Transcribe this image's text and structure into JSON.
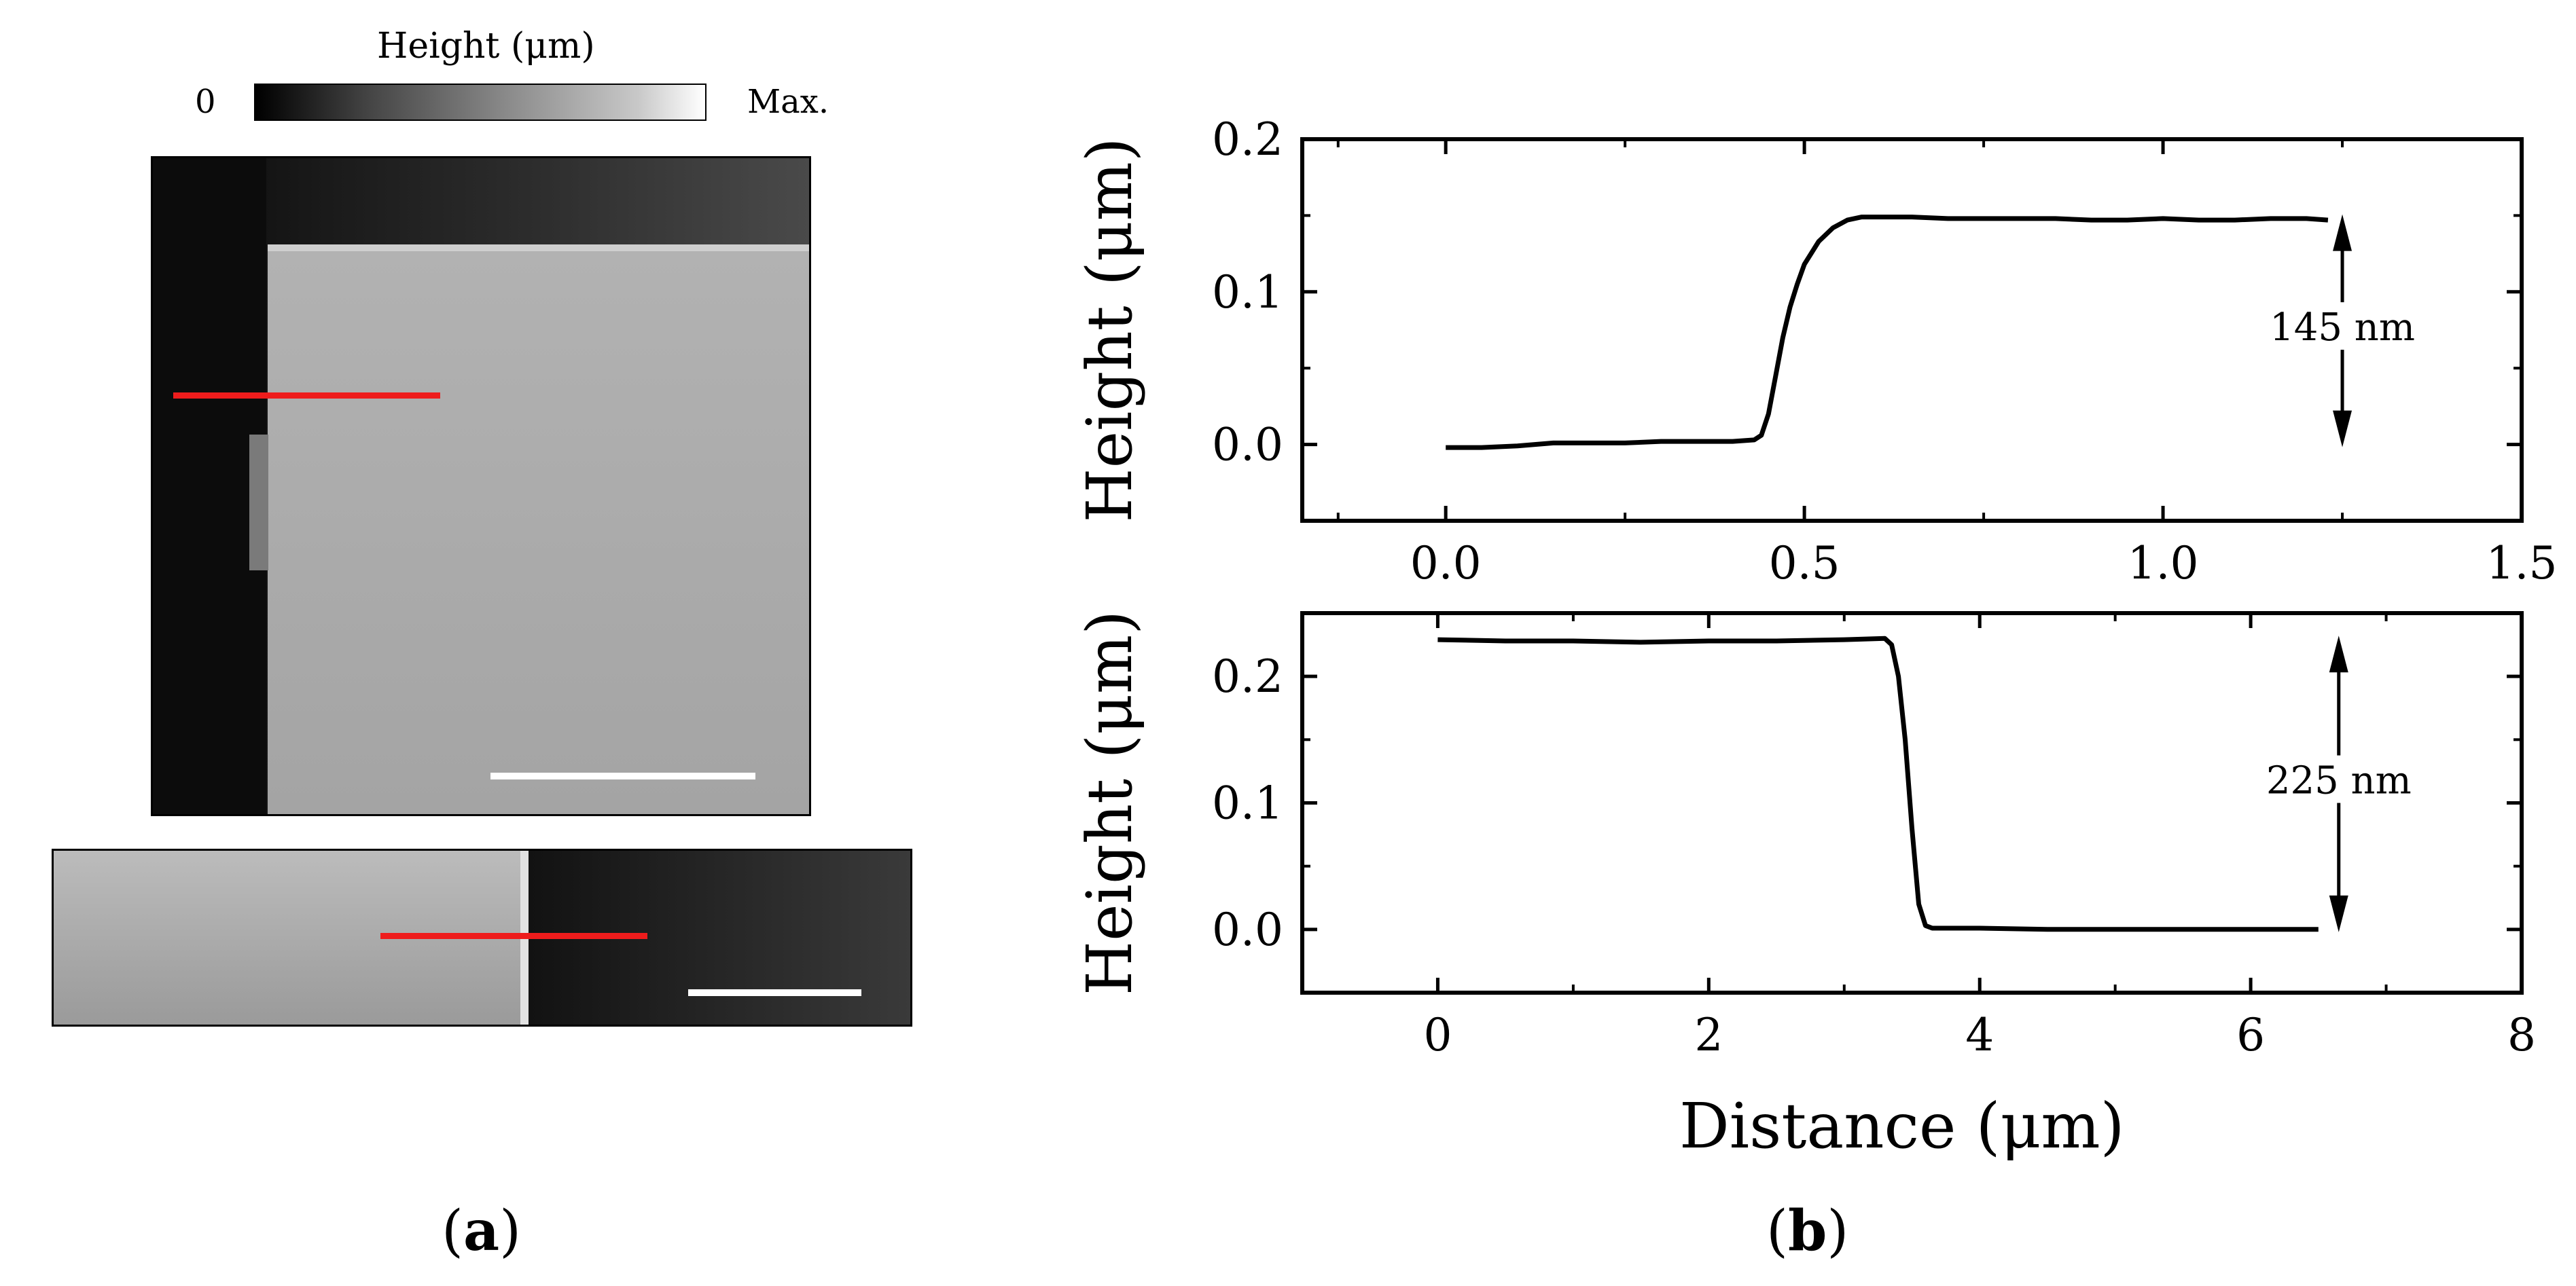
{
  "panel_a": {
    "colorbar": {
      "title": "Height (μm)",
      "min_label": "0",
      "max_label": "Max."
    },
    "label": "a"
  },
  "panel_b": {
    "label": "b",
    "xlabel": "Distance (μm)"
  },
  "chart_data": [
    {
      "type": "line",
      "xlabel": "",
      "ylabel": "Height (μm)",
      "xlim": [
        -0.2,
        1.5
      ],
      "ylim": [
        -0.05,
        0.2
      ],
      "xticks": [
        "0.0",
        "0.5",
        "1.0",
        "1.5"
      ],
      "yticks": [
        "0.0",
        "0.1",
        "0.2"
      ],
      "annotation": "145 nm",
      "x": [
        0.0,
        0.05,
        0.1,
        0.15,
        0.2,
        0.25,
        0.3,
        0.35,
        0.4,
        0.43,
        0.44,
        0.45,
        0.46,
        0.47,
        0.48,
        0.49,
        0.5,
        0.52,
        0.54,
        0.56,
        0.58,
        0.6,
        0.65,
        0.7,
        0.75,
        0.8,
        0.85,
        0.9,
        0.95,
        1.0,
        1.05,
        1.1,
        1.15,
        1.2,
        1.23
      ],
      "y": [
        -0.002,
        -0.002,
        -0.001,
        0.001,
        0.001,
        0.001,
        0.002,
        0.002,
        0.002,
        0.003,
        0.006,
        0.02,
        0.045,
        0.07,
        0.09,
        0.105,
        0.118,
        0.133,
        0.142,
        0.147,
        0.149,
        0.149,
        0.149,
        0.148,
        0.148,
        0.148,
        0.148,
        0.147,
        0.147,
        0.148,
        0.147,
        0.147,
        0.148,
        0.148,
        0.147
      ]
    },
    {
      "type": "line",
      "xlabel": "Distance (μm)",
      "ylabel": "Height (μm)",
      "xlim": [
        -1,
        8
      ],
      "ylim": [
        -0.05,
        0.25
      ],
      "xticks": [
        "0",
        "2",
        "4",
        "6",
        "8"
      ],
      "yticks": [
        "0.0",
        "0.1",
        "0.2"
      ],
      "annotation": "225 nm",
      "x": [
        0.0,
        0.5,
        1.0,
        1.5,
        2.0,
        2.5,
        3.0,
        3.3,
        3.35,
        3.4,
        3.45,
        3.5,
        3.55,
        3.6,
        3.65,
        3.7,
        4.0,
        4.5,
        5.0,
        5.5,
        6.0,
        6.5
      ],
      "y": [
        0.229,
        0.228,
        0.228,
        0.227,
        0.228,
        0.228,
        0.229,
        0.23,
        0.225,
        0.2,
        0.15,
        0.08,
        0.02,
        0.003,
        0.001,
        0.001,
        0.001,
        0.0,
        0.0,
        0.0,
        0.0,
        0.0
      ]
    }
  ],
  "colors": {
    "profile_line": "#ee1c1c",
    "scale_bar": "#ffffff",
    "data_line": "#000000"
  }
}
